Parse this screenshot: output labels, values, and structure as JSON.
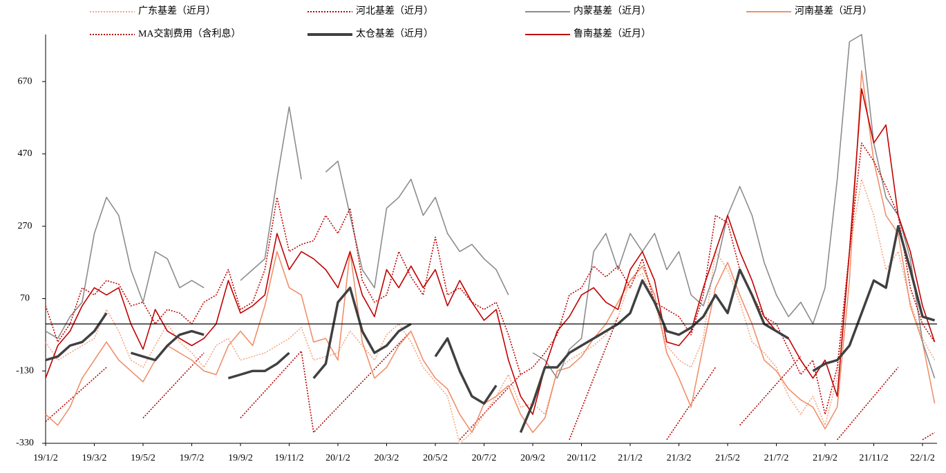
{
  "chart_data": {
    "type": "line",
    "categories": [
      "19/1/2",
      null,
      null,
      null,
      "19/3/2",
      null,
      null,
      null,
      "19/5/2",
      null,
      null,
      null,
      "19/7/2",
      null,
      null,
      null,
      "19/9/2",
      null,
      null,
      null,
      "19/11/2",
      null,
      null,
      null,
      "20/1/2",
      null,
      null,
      null,
      "20/3/2",
      null,
      null,
      null,
      "20/5/2",
      null,
      null,
      null,
      "20/7/2",
      null,
      null,
      null,
      "20/9/2",
      null,
      null,
      null,
      "20/11/2",
      null,
      null,
      null,
      "21/1/2",
      null,
      null,
      null,
      "21/3/2",
      null,
      null,
      null,
      "21/5/2",
      null,
      null,
      null,
      "21/7/2",
      null,
      null,
      null,
      "21/9/2",
      null,
      null,
      null,
      "21/11/2",
      null,
      null,
      null,
      "22/1/2",
      null
    ],
    "ylim": [
      -330,
      800
    ],
    "yticks": [
      -330,
      -130,
      70,
      270,
      470,
      670
    ],
    "series": [
      {
        "name": "广东基差（近月）",
        "color": "#f4a582",
        "style": "dotted",
        "values": [
          -50,
          -100,
          -80,
          -60,
          -40,
          40,
          -20,
          -100,
          -120,
          -60,
          0,
          -50,
          -80,
          -120,
          -60,
          -40,
          -100,
          -90,
          -80,
          -60,
          -40,
          -10,
          -100,
          -90,
          -80,
          -20,
          -60,
          -100,
          -30,
          0,
          -50,
          -120,
          -160,
          -200,
          -330,
          -300,
          -250,
          -200,
          -140,
          -230,
          -220,
          -250,
          -130,
          -100,
          -80,
          -60,
          -30,
          20,
          120,
          140,
          60,
          -60,
          -100,
          -120,
          -40,
          200,
          150,
          60,
          -50,
          -80,
          -120,
          -200,
          -250,
          -200,
          -280,
          -150,
          200,
          400,
          300,
          150,
          200,
          60,
          -40,
          -100
        ]
      },
      {
        "name": "河北基差（近月）",
        "color": "#c00000",
        "style": "dotted",
        "values": [
          50,
          -50,
          0,
          100,
          80,
          120,
          110,
          50,
          60,
          0,
          40,
          30,
          0,
          60,
          80,
          150,
          40,
          60,
          150,
          350,
          200,
          220,
          230,
          300,
          250,
          320,
          120,
          60,
          80,
          200,
          130,
          80,
          240,
          80,
          100,
          60,
          40,
          60,
          -30,
          -140,
          -120,
          -80,
          -30,
          80,
          100,
          160,
          130,
          160,
          100,
          180,
          60,
          40,
          20,
          -30,
          80,
          300,
          280,
          150,
          80,
          20,
          0,
          -70,
          -140,
          -100,
          -250,
          -120,
          200,
          500,
          450,
          380,
          300,
          100,
          0,
          -50
        ]
      },
      {
        "name": "内蒙基差（近月）",
        "color": "#8c8c8c",
        "style": "solid",
        "values": [
          -20,
          -40,
          20,
          60,
          250,
          350,
          300,
          150,
          60,
          200,
          180,
          100,
          120,
          100,
          null,
          null,
          120,
          150,
          180,
          400,
          600,
          400,
          null,
          420,
          450,
          300,
          150,
          100,
          320,
          350,
          400,
          300,
          350,
          250,
          200,
          220,
          180,
          150,
          80,
          null,
          -80,
          -100,
          -150,
          -70,
          -40,
          200,
          250,
          150,
          250,
          200,
          250,
          150,
          200,
          80,
          50,
          150,
          300,
          380,
          300,
          170,
          80,
          20,
          60,
          0,
          100,
          400,
          780,
          800,
          500,
          350,
          300,
          180,
          -50,
          -150
        ]
      },
      {
        "name": "河南基差（近月）",
        "color": "#f08f6a",
        "style": "solid",
        "values": [
          -250,
          -280,
          -230,
          -150,
          -100,
          -50,
          -100,
          -130,
          -160,
          -100,
          -60,
          -80,
          -100,
          -130,
          -140,
          -60,
          -20,
          -60,
          50,
          200,
          100,
          80,
          -50,
          -40,
          -100,
          200,
          -50,
          -150,
          -120,
          -60,
          -20,
          -100,
          -150,
          -180,
          -250,
          -300,
          -220,
          -200,
          -170,
          -250,
          -300,
          -260,
          -130,
          -120,
          -90,
          -40,
          0,
          60,
          120,
          160,
          80,
          -80,
          -150,
          -230,
          -60,
          100,
          170,
          80,
          0,
          -100,
          -130,
          -180,
          -210,
          -230,
          -290,
          -230,
          120,
          700,
          450,
          300,
          250,
          50,
          -50,
          -220
        ]
      },
      {
        "name": "MA交割费用（含利息）",
        "color": "#b00000",
        "style": "dotted",
        "values": [
          -270,
          -240,
          -210,
          -180,
          -150,
          -120,
          null,
          null,
          -260,
          -224,
          -188,
          -152,
          -116,
          -80,
          null,
          null,
          -260,
          -223,
          -186,
          -149,
          -112,
          -75,
          -300,
          -265,
          -230,
          -195,
          -160,
          -125,
          -90,
          -55,
          -20,
          null,
          null,
          null,
          -320,
          -284,
          -248,
          -212,
          -176,
          -140,
          null,
          null,
          null,
          -320,
          -235,
          -150,
          -65,
          20,
          null,
          null,
          null,
          -320,
          -270,
          -220,
          -170,
          -120,
          null,
          -280,
          -242,
          -204,
          -166,
          -128,
          -90,
          null,
          null,
          -320,
          -280,
          -240,
          -200,
          -160,
          -120,
          null,
          -320,
          -300
        ]
      },
      {
        "name": "太仓基差（近月）",
        "color": "#404040",
        "style": "thick",
        "values": [
          -100,
          -90,
          -60,
          -50,
          -20,
          30,
          null,
          -80,
          -90,
          -100,
          -60,
          -30,
          -20,
          -30,
          null,
          -150,
          -140,
          -130,
          -130,
          -110,
          -80,
          null,
          -150,
          -110,
          60,
          100,
          -20,
          -80,
          -60,
          -20,
          0,
          null,
          -90,
          -40,
          -130,
          -200,
          -220,
          -170,
          null,
          -300,
          -220,
          -120,
          -120,
          -80,
          -60,
          -40,
          -20,
          0,
          30,
          120,
          60,
          -20,
          -30,
          -10,
          20,
          80,
          30,
          150,
          80,
          0,
          -20,
          -40,
          null,
          -130,
          -110,
          -100,
          -60,
          30,
          120,
          100,
          270,
          150,
          20,
          10
        ]
      },
      {
        "name": "鲁南基差（近月）",
        "color": "#c00000",
        "style": "solid",
        "values": [
          -150,
          -60,
          -20,
          50,
          100,
          80,
          100,
          0,
          -70,
          40,
          -20,
          -40,
          -60,
          -40,
          0,
          120,
          30,
          50,
          80,
          250,
          150,
          200,
          180,
          150,
          100,
          200,
          80,
          20,
          150,
          100,
          160,
          100,
          150,
          50,
          120,
          60,
          10,
          40,
          -100,
          -200,
          -250,
          -120,
          -20,
          20,
          80,
          100,
          60,
          40,
          150,
          200,
          120,
          -50,
          -60,
          -20,
          100,
          200,
          300,
          200,
          120,
          20,
          -20,
          -40,
          -100,
          -150,
          -100,
          -200,
          200,
          650,
          500,
          550,
          300,
          200,
          50,
          -50
        ]
      }
    ]
  }
}
